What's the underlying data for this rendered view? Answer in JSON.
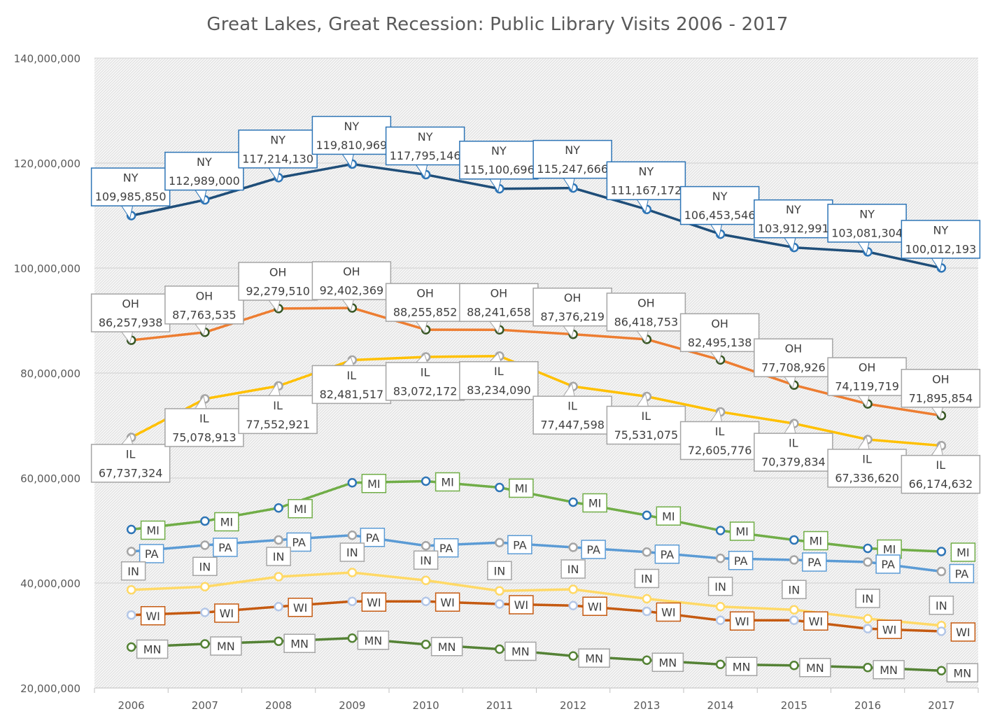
{
  "chart_data": {
    "type": "line",
    "title": "Great Lakes, Great Recession: Public Library Visits 2006 - 2017",
    "xlabel": "",
    "ylabel": "",
    "x": [
      "2006",
      "2007",
      "2008",
      "2009",
      "2010",
      "2011",
      "2012",
      "2013",
      "2014",
      "2015",
      "2016",
      "2017"
    ],
    "ylim": [
      20000000,
      140000000
    ],
    "yticks": [
      20000000,
      40000000,
      60000000,
      80000000,
      100000000,
      120000000,
      140000000
    ],
    "ytick_labels": [
      "20,000,000",
      "40,000,000",
      "60,000,000",
      "80,000,000",
      "100,000,000",
      "120,000,000",
      "140,000,000"
    ],
    "grid": true,
    "legend": "none",
    "series": [
      {
        "name": "NY",
        "color": "#1f4e79",
        "marker": "#2e75b6",
        "labeled_values": true,
        "values": [
          109985850,
          112989000,
          117214130,
          119810969,
          117795146,
          115100696,
          115247666,
          111167172,
          106453546,
          103912991,
          103081304,
          100012193
        ]
      },
      {
        "name": "OH",
        "color": "#ed7d31",
        "marker": "#375623",
        "labeled_values": true,
        "values": [
          86257938,
          87763535,
          92279510,
          92402369,
          88255852,
          88241658,
          87376219,
          86418753,
          82495138,
          77708926,
          74119719,
          71895854
        ]
      },
      {
        "name": "IL",
        "color": "#ffc000",
        "marker": "#a5a5a5",
        "labeled_values": true,
        "values": [
          67737324,
          75078913,
          77552921,
          82481517,
          83072172,
          83234090,
          77447598,
          75531075,
          72605776,
          70379834,
          67336620,
          66174632
        ]
      },
      {
        "name": "MI",
        "color": "#70ad47",
        "marker": "#2e75b6",
        "labeled_values": false,
        "values": [
          50200000,
          51800000,
          54300000,
          59100000,
          59400000,
          58200000,
          55400000,
          52900000,
          50000000,
          48200000,
          46600000,
          46000000
        ]
      },
      {
        "name": "PA",
        "color": "#5b9bd5",
        "marker": "#a5a5a5",
        "labeled_values": false,
        "values": [
          46000000,
          47200000,
          48200000,
          49100000,
          47100000,
          47700000,
          46800000,
          45900000,
          44700000,
          44400000,
          44000000,
          42200000
        ]
      },
      {
        "name": "IN",
        "color": "#ffd966",
        "marker": "#ffd966",
        "labeled_values": false,
        "values": [
          38700000,
          39300000,
          41200000,
          42000000,
          40500000,
          38500000,
          38800000,
          37000000,
          35500000,
          34900000,
          33200000,
          31900000
        ]
      },
      {
        "name": "WI",
        "color": "#c55a11",
        "marker": "#b4c7e7",
        "labeled_values": false,
        "values": [
          33900000,
          34400000,
          35500000,
          36500000,
          36500000,
          36000000,
          35700000,
          34600000,
          32900000,
          32900000,
          31300000,
          30800000
        ]
      },
      {
        "name": "MN",
        "color": "#548235",
        "marker": "#548235",
        "labeled_values": false,
        "values": [
          27800000,
          28400000,
          28900000,
          29500000,
          28300000,
          27400000,
          26100000,
          25300000,
          24500000,
          24300000,
          23900000,
          23300000
        ]
      }
    ]
  }
}
